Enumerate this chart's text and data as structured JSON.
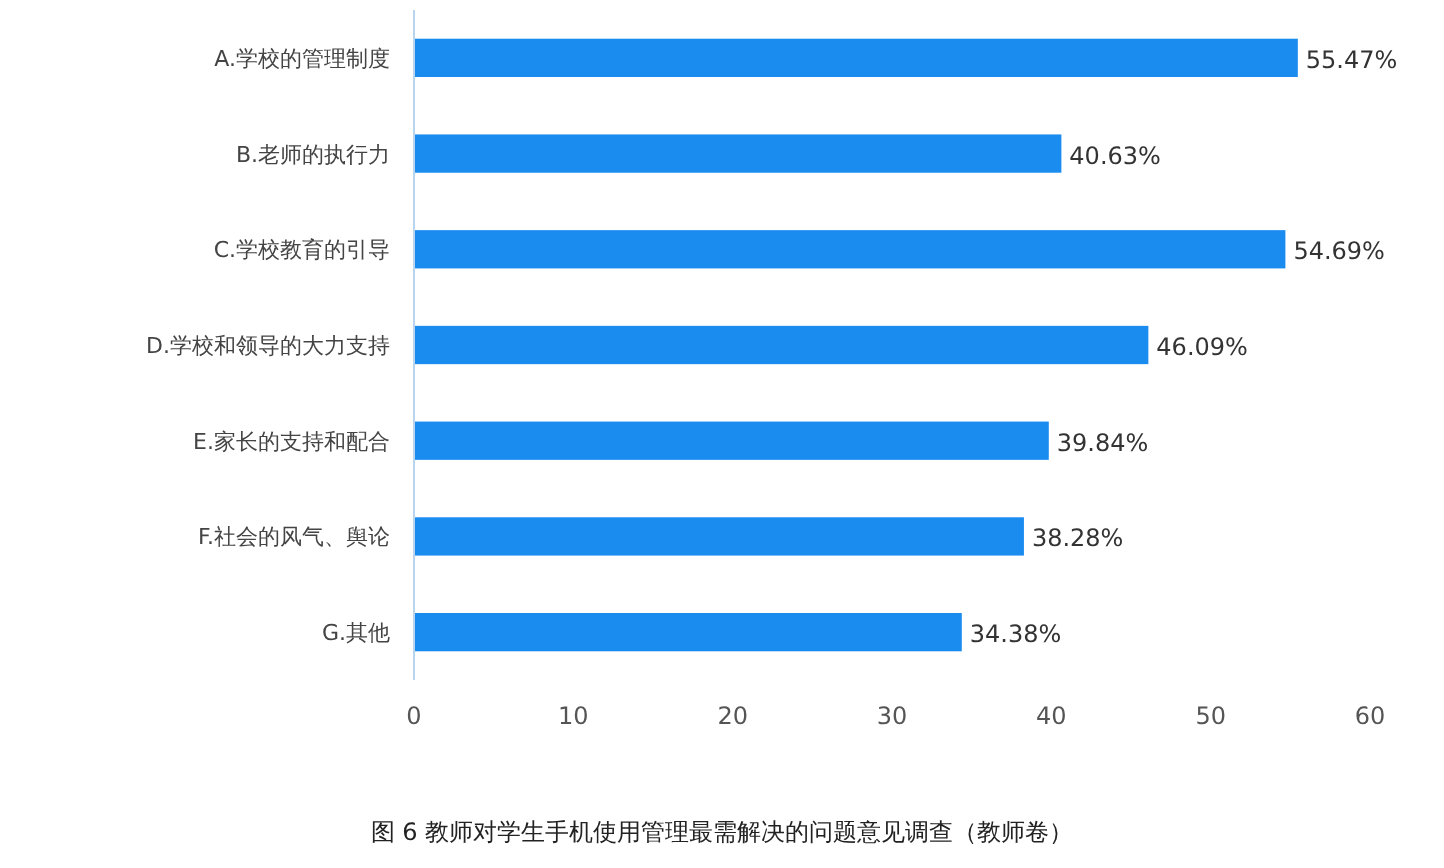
{
  "chart_data": {
    "type": "bar",
    "orientation": "horizontal",
    "categories": [
      "A.学校的管理制度",
      "B.老师的执行力",
      "C.学校教育的引导",
      "D.学校和领导的大力支持",
      "E.家长的支持和配合",
      "F.社会的风气、舆论",
      "G.其他"
    ],
    "values": [
      55.47,
      40.63,
      54.69,
      46.09,
      39.84,
      38.28,
      34.38
    ],
    "value_labels": [
      "55.47%",
      "40.63%",
      "54.69%",
      "46.09%",
      "39.84%",
      "38.28%",
      "34.38%"
    ],
    "color": "#1a8cf0",
    "xlim": [
      0,
      60
    ],
    "xticks": [
      0,
      10,
      20,
      30,
      40,
      50,
      60
    ],
    "grid": false,
    "annotations": [
      "图 6 教师对学生手机使用管理最需解决的问题意见调查（教师卷）"
    ]
  }
}
